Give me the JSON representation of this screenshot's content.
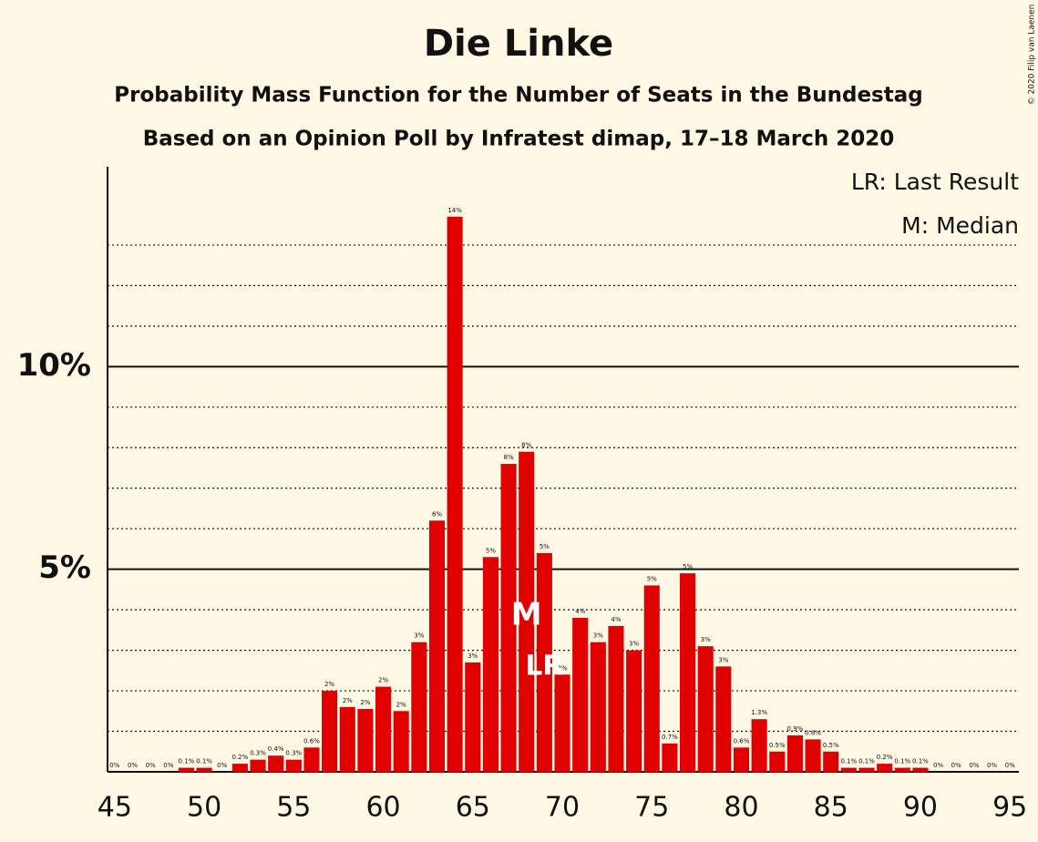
{
  "chart_data": {
    "type": "bar",
    "title": "Die Linke",
    "subtitle": "Probability Mass Function for the Number of Seats in the Bundestag",
    "subtitle2": "Based on an Opinion Poll by Infratest dimap, 17–18 March 2020",
    "legend": [
      "LR: Last Result",
      "M: Median"
    ],
    "copyright": "© 2020 Filip van Laenen",
    "color": "#e00000",
    "x": [
      45,
      46,
      47,
      48,
      49,
      50,
      51,
      52,
      53,
      54,
      55,
      56,
      57,
      58,
      59,
      60,
      61,
      62,
      63,
      64,
      65,
      66,
      67,
      68,
      69,
      70,
      71,
      72,
      73,
      74,
      75,
      76,
      77,
      78,
      79,
      80,
      81,
      82,
      83,
      84,
      85,
      86,
      87,
      88,
      89,
      90,
      91,
      92,
      93,
      94,
      95
    ],
    "values": [
      0,
      0,
      0,
      0,
      0.1,
      0.1,
      0,
      0.2,
      0.3,
      0.4,
      0.3,
      0.6,
      2.0,
      1.6,
      1.55,
      2.1,
      1.5,
      3.2,
      6.2,
      13.7,
      2.7,
      5.3,
      7.6,
      7.9,
      5.4,
      2.4,
      3.8,
      3.2,
      3.6,
      3.0,
      4.6,
      0.7,
      4.9,
      3.1,
      2.6,
      0.6,
      1.3,
      0.5,
      0.9,
      0.8,
      0.5,
      0.1,
      0.1,
      0.2,
      0.1,
      0.1,
      0,
      0,
      0,
      0,
      0
    ],
    "value_labels": [
      "0%",
      "0%",
      "0%",
      "0%",
      "0.1%",
      "0.1%",
      "0%",
      "0.2%",
      "0.3%",
      "0.4%",
      "0.3%",
      "0.6%",
      "2%",
      "2%",
      "2%",
      "2%",
      "2%",
      "3%",
      "6%",
      "14%",
      "3%",
      "5%",
      "8%",
      "8%",
      "5%",
      "2%",
      "4%",
      "3%",
      "4%",
      "3%",
      "5%",
      "0.7%",
      "5%",
      "3%",
      "3%",
      "0.6%",
      "1.3%",
      "0.5%",
      "0.9%",
      "0.8%",
      "0.5%",
      "0.1%",
      "0.1%",
      "0.2%",
      "0.1%",
      "0.1%",
      "0%",
      "0%",
      "0%",
      "0%",
      "0%"
    ],
    "median": 68,
    "median_label": "M",
    "last_result": 69,
    "last_result_label": "LR",
    "xlim": [
      44.6,
      95.5
    ],
    "xticks": [
      45,
      50,
      55,
      60,
      65,
      70,
      75,
      80,
      85,
      90,
      95
    ],
    "ylim": [
      0,
      15
    ],
    "yticks": [
      {
        "value": 5,
        "label": "5%"
      },
      {
        "value": 10,
        "label": "10%"
      }
    ],
    "minor_yticks": [
      1,
      2,
      3,
      4,
      6,
      7,
      8,
      9,
      11,
      12,
      13
    ],
    "grid": true
  }
}
